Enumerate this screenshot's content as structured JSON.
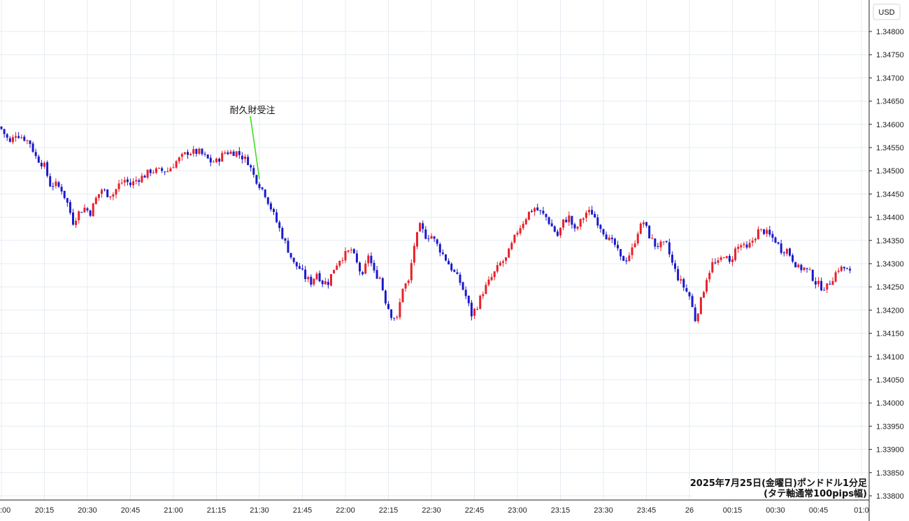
{
  "currency_button": "USD",
  "chart_data": {
    "type": "candlestick",
    "y_ticks": [
      "1.34800",
      "1.34750",
      "1.34700",
      "1.34650",
      "1.34600",
      "1.34550",
      "1.34500",
      "1.34450",
      "1.34400",
      "1.34350",
      "1.34300",
      "1.34250",
      "1.34200",
      "1.34150",
      "1.34100",
      "1.34050",
      "1.34000",
      "1.33950",
      "1.33900",
      "1.33850",
      "1.33800"
    ],
    "ylim": [
      1.33795,
      1.34845
    ],
    "x_ticks": [
      ":00",
      "20:15",
      "20:30",
      "20:45",
      "21:00",
      "21:15",
      "21:30",
      "21:45",
      "22:00",
      "22:15",
      "22:30",
      "22:45",
      "23:00",
      "23:15",
      "23:30",
      "23:45",
      "26",
      "00:15",
      "00:30",
      "00:45",
      "01:0"
    ],
    "grid": true,
    "up_color": "#e8202a",
    "down_color": "#1a1acc",
    "annotation": {
      "text": "耐久財受注",
      "time_index": 90,
      "line_color": "#44dd22"
    },
    "caption_line1": "2025年7月25日(金曜日)ポンドドル1分足",
    "caption_line2": "(タテ軸通常100pips幅)",
    "price_path": [
      [
        0,
        1.3459
      ],
      [
        3,
        1.3456
      ],
      [
        5,
        1.3458
      ],
      [
        8,
        1.3457
      ],
      [
        10,
        1.3456
      ],
      [
        12,
        1.3453
      ],
      [
        15,
        1.3451
      ],
      [
        17,
        1.3447
      ],
      [
        19,
        1.3447
      ],
      [
        21,
        1.3446
      ],
      [
        23,
        1.3443
      ],
      [
        25,
        1.3439
      ],
      [
        27,
        1.3441
      ],
      [
        29,
        1.3442
      ],
      [
        31,
        1.3441
      ],
      [
        33,
        1.3444
      ],
      [
        35,
        1.3446
      ],
      [
        37,
        1.3445
      ],
      [
        39,
        1.3445
      ],
      [
        41,
        1.3447
      ],
      [
        43,
        1.3448
      ],
      [
        45,
        1.3447
      ],
      [
        47,
        1.3448
      ],
      [
        50,
        1.3449
      ],
      [
        52,
        1.345
      ],
      [
        54,
        1.345
      ],
      [
        56,
        1.345
      ],
      [
        58,
        1.345
      ],
      [
        61,
        1.3452
      ],
      [
        63,
        1.3453
      ],
      [
        65,
        1.3454
      ],
      [
        67,
        1.3454
      ],
      [
        69,
        1.3454
      ],
      [
        71,
        1.3453
      ],
      [
        73,
        1.3452
      ],
      [
        75,
        1.3452
      ],
      [
        78,
        1.3454
      ],
      [
        80,
        1.3454
      ],
      [
        82,
        1.3454
      ],
      [
        84,
        1.3453
      ],
      [
        86,
        1.3452
      ],
      [
        88,
        1.3449
      ],
      [
        90,
        1.3447
      ],
      [
        92,
        1.3445
      ],
      [
        94,
        1.3442
      ],
      [
        96,
        1.3439
      ],
      [
        98,
        1.3436
      ],
      [
        100,
        1.3433
      ],
      [
        102,
        1.343
      ],
      [
        104,
        1.3429
      ],
      [
        106,
        1.3427
      ],
      [
        108,
        1.3426
      ],
      [
        110,
        1.3428
      ],
      [
        112,
        1.3426
      ],
      [
        114,
        1.3426
      ],
      [
        116,
        1.3429
      ],
      [
        118,
        1.3431
      ],
      [
        120,
        1.3432
      ],
      [
        122,
        1.3433
      ],
      [
        124,
        1.343
      ],
      [
        126,
        1.3427
      ],
      [
        128,
        1.3432
      ],
      [
        130,
        1.3428
      ],
      [
        132,
        1.3427
      ],
      [
        134,
        1.3422
      ],
      [
        136,
        1.3419
      ],
      [
        138,
        1.3418
      ],
      [
        140,
        1.3425
      ],
      [
        142,
        1.3426
      ],
      [
        144,
        1.3434
      ],
      [
        146,
        1.3438
      ],
      [
        148,
        1.3436
      ],
      [
        150,
        1.3436
      ],
      [
        152,
        1.3434
      ],
      [
        154,
        1.3432
      ],
      [
        156,
        1.343
      ],
      [
        158,
        1.3428
      ],
      [
        160,
        1.3426
      ],
      [
        162,
        1.3423
      ],
      [
        164,
        1.3419
      ],
      [
        166,
        1.3421
      ],
      [
        168,
        1.3424
      ],
      [
        170,
        1.3426
      ],
      [
        172,
        1.3428
      ],
      [
        174,
        1.343
      ],
      [
        176,
        1.3431
      ],
      [
        178,
        1.3434
      ],
      [
        180,
        1.3437
      ],
      [
        182,
        1.3439
      ],
      [
        184,
        1.3441
      ],
      [
        186,
        1.3442
      ],
      [
        188,
        1.3441
      ],
      [
        190,
        1.344
      ],
      [
        192,
        1.3438
      ],
      [
        194,
        1.3436
      ],
      [
        196,
        1.3439
      ],
      [
        198,
        1.344
      ],
      [
        200,
        1.3437
      ],
      [
        202,
        1.3439
      ],
      [
        204,
        1.3441
      ],
      [
        206,
        1.3441
      ],
      [
        208,
        1.3439
      ],
      [
        210,
        1.3437
      ],
      [
        212,
        1.3435
      ],
      [
        214,
        1.3434
      ],
      [
        216,
        1.3431
      ],
      [
        218,
        1.3431
      ],
      [
        220,
        1.3433
      ],
      [
        222,
        1.3437
      ],
      [
        224,
        1.3439
      ],
      [
        226,
        1.3436
      ],
      [
        228,
        1.3434
      ],
      [
        230,
        1.3434
      ],
      [
        232,
        1.3434
      ],
      [
        234,
        1.343
      ],
      [
        236,
        1.3427
      ],
      [
        238,
        1.3425
      ],
      [
        240,
        1.3423
      ],
      [
        242,
        1.3418
      ],
      [
        244,
        1.3422
      ],
      [
        246,
        1.3427
      ],
      [
        248,
        1.343
      ],
      [
        250,
        1.343
      ],
      [
        252,
        1.3432
      ],
      [
        254,
        1.343
      ],
      [
        256,
        1.3433
      ],
      [
        258,
        1.3434
      ],
      [
        260,
        1.3433
      ],
      [
        262,
        1.3435
      ],
      [
        264,
        1.3437
      ],
      [
        266,
        1.3437
      ],
      [
        268,
        1.3436
      ],
      [
        270,
        1.3435
      ],
      [
        272,
        1.3433
      ],
      [
        274,
        1.3433
      ],
      [
        276,
        1.3431
      ],
      [
        278,
        1.3429
      ],
      [
        280,
        1.3429
      ],
      [
        282,
        1.3428
      ],
      [
        284,
        1.3426
      ],
      [
        286,
        1.3425
      ],
      [
        288,
        1.3425
      ],
      [
        290,
        1.3427
      ],
      [
        292,
        1.3429
      ],
      [
        294,
        1.3429
      ],
      [
        296,
        1.3428
      ]
    ]
  }
}
